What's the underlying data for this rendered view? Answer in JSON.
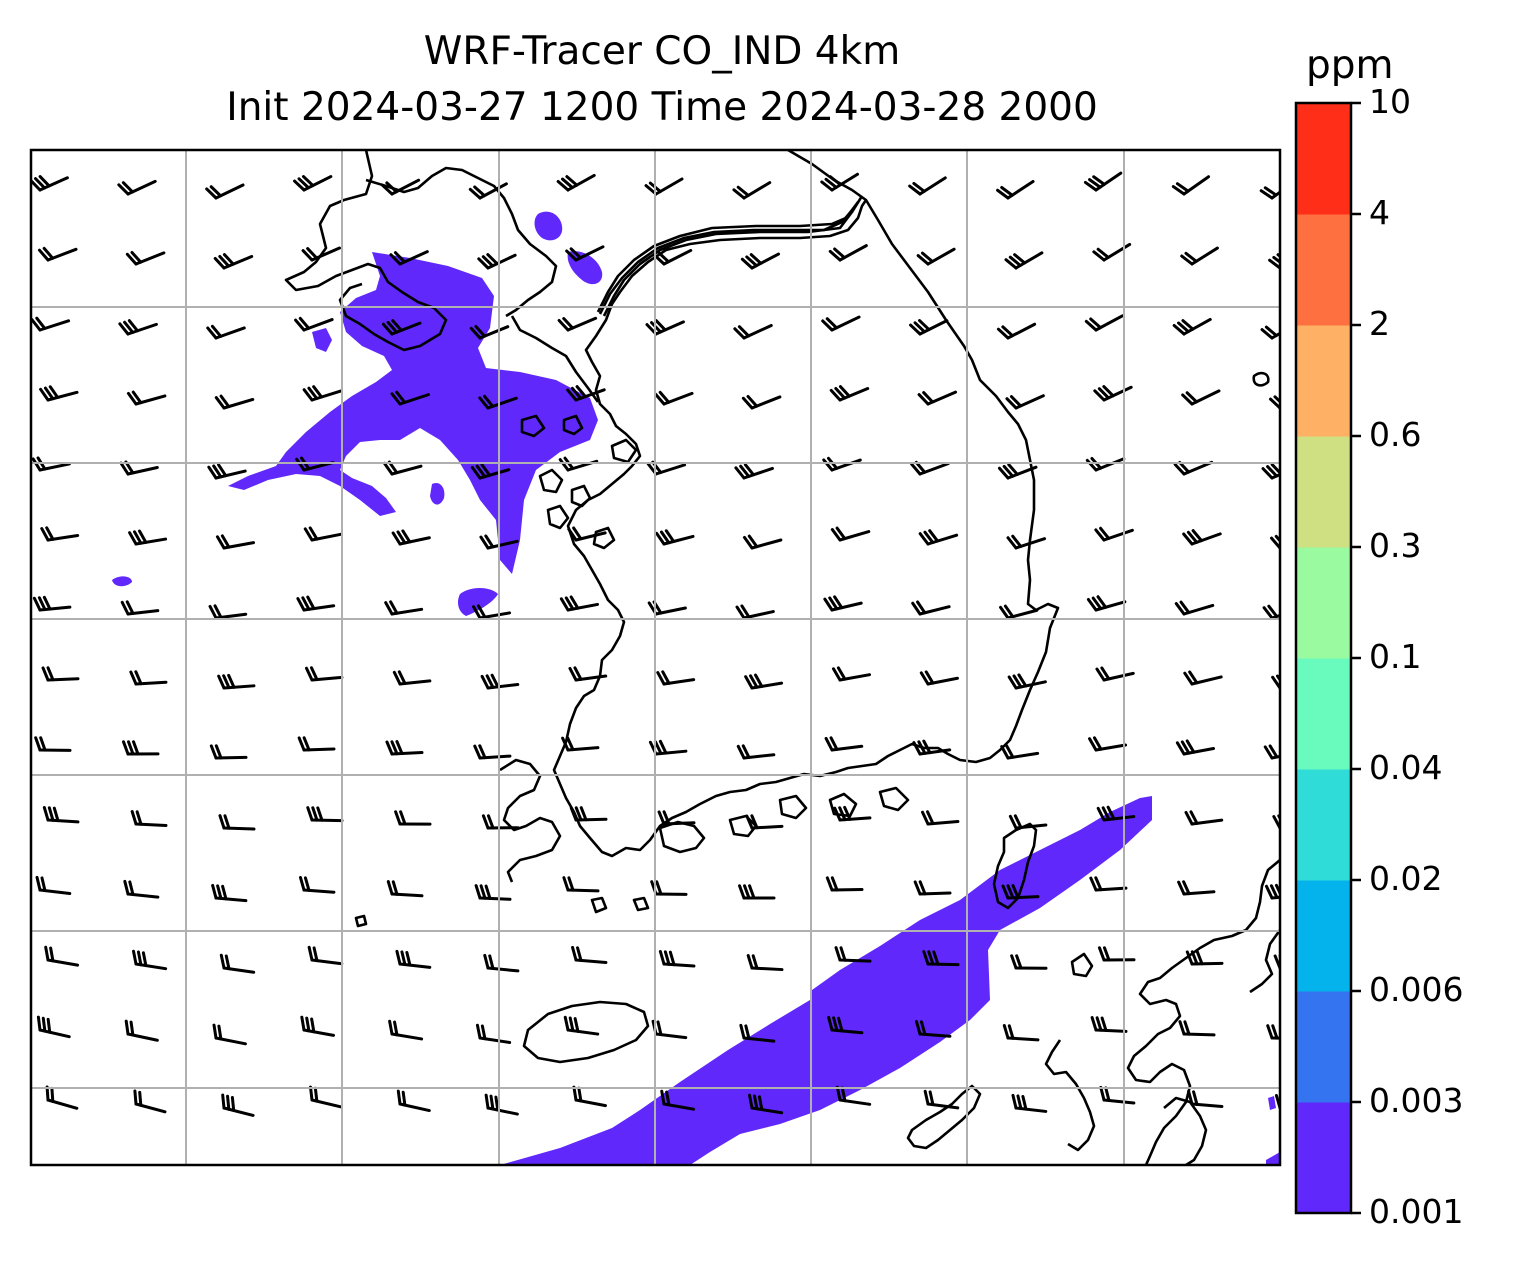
{
  "title": {
    "line1": "WRF-Tracer CO_IND 4km",
    "line2": "Init 2024-03-27 1200 Time 2024-03-28 2000"
  },
  "colorbar": {
    "unit": "ppm",
    "levels": [
      "0.001",
      "0.003",
      "0.006",
      "0.02",
      "0.04",
      "0.1",
      "0.3",
      "0.6",
      "2",
      "4",
      "10"
    ],
    "colors": [
      "#6028fb",
      "#3474f0",
      "#04b3ec",
      "#30dcd8",
      "#69fabe",
      "#9afaa0",
      "#cfe082",
      "#feb065",
      "#fe7040",
      "#ff2e18"
    ]
  },
  "map": {
    "tracer_fill_color": "#6028fb",
    "coastline_color": "#000000",
    "gridline_color": "#b0b0b0",
    "wind_barb_color": "#000000"
  }
}
